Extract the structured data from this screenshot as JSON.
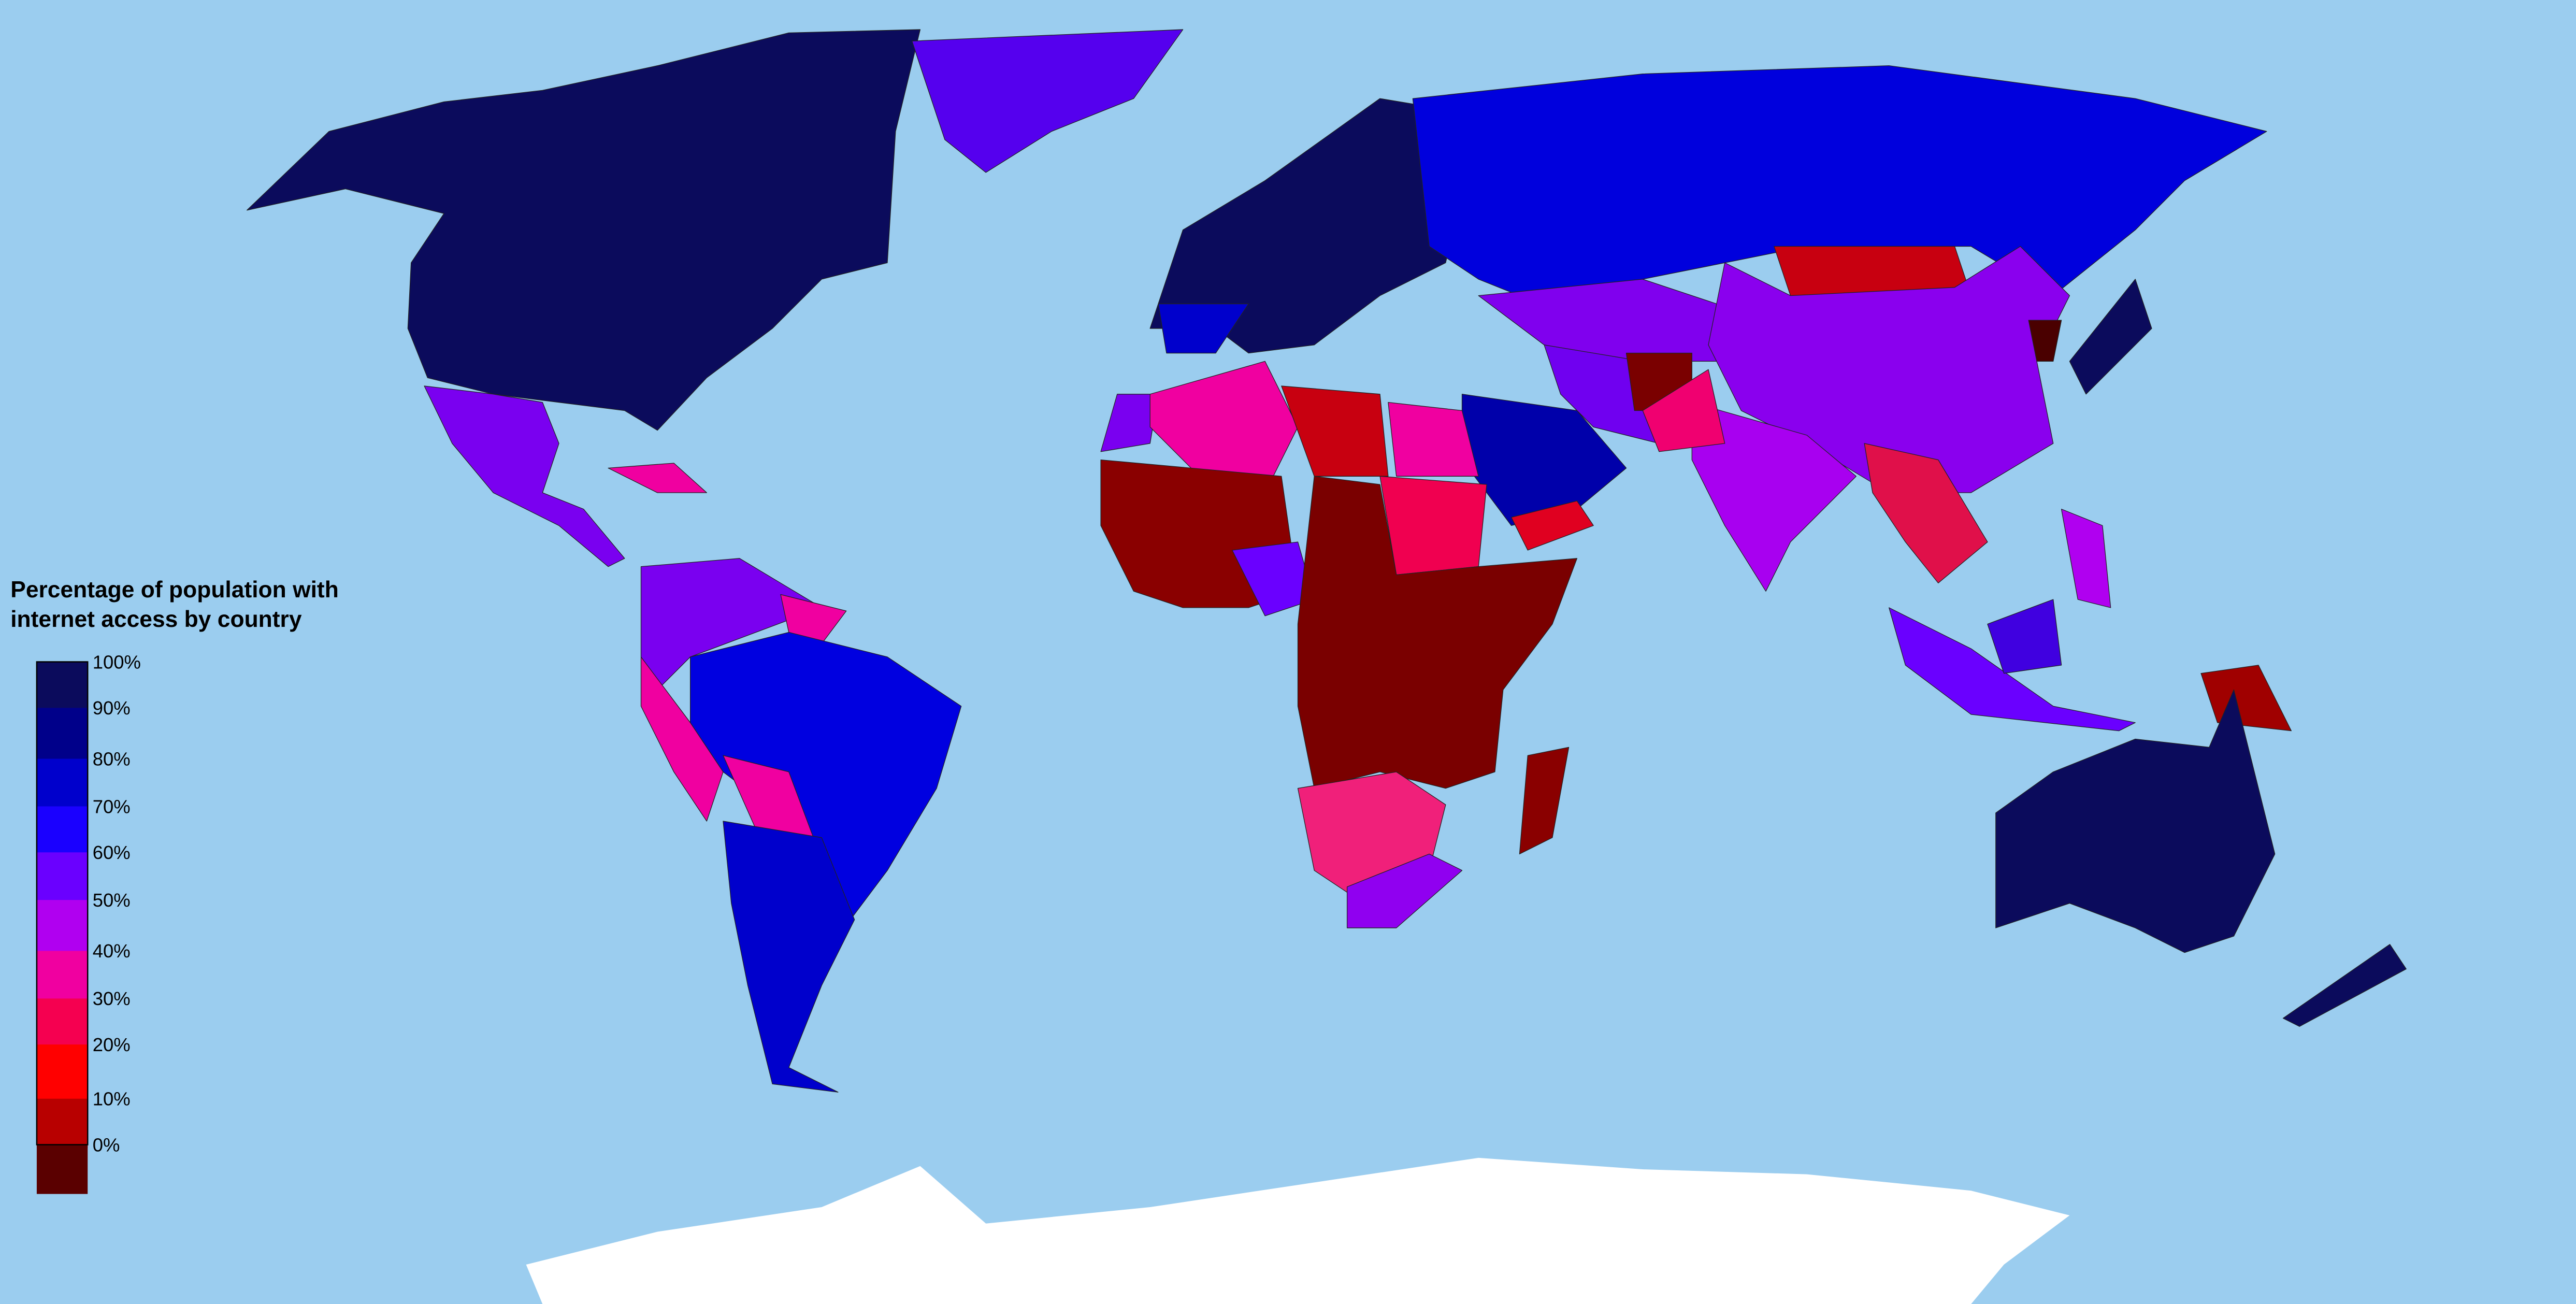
{
  "legend": {
    "title_lines": [
      "Percentage of population with",
      "internet access by country"
    ],
    "labels": [
      "100%",
      "90%",
      "80%",
      "70%",
      "60%",
      "50%",
      "40%",
      "30%",
      "20%",
      "10%",
      "0%"
    ],
    "colors": [
      "#0b0b5c",
      "#00008a",
      "#0000cc",
      "#1a00ff",
      "#6a00ff",
      "#b000f0",
      "#f000a0",
      "#f50050",
      "#ff0000",
      "#b80000",
      "#5a0000"
    ]
  }
}
